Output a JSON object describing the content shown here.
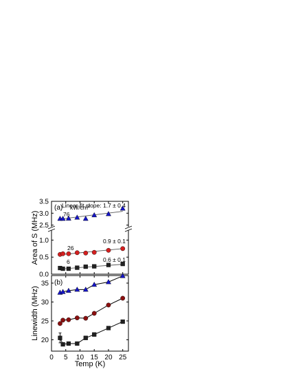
{
  "chart_data": [
    {
      "panel": "(a)",
      "type": "scatter",
      "ylabel": "Area of S (MHz)",
      "xlim": [
        0,
        27
      ],
      "y_broken_axis": true,
      "ylim_lower": [
        0,
        1.25
      ],
      "ylim_upper": [
        2.4,
        3.5
      ],
      "yticks_lower": [
        "0.0",
        "0.5",
        "1.0"
      ],
      "yticks_upper": [
        "2.5",
        "3.0",
        "3.5"
      ],
      "unit_label": "kW/cm",
      "unit_superscript": "2",
      "fit_label": "Linear fit slope: 1.7 ± 0.4",
      "series": [
        {
          "power_label": "76",
          "slope_label": "",
          "marker": "triangle",
          "color": "#1515c8",
          "x": [
            3,
            4,
            6,
            9,
            12,
            15,
            20,
            25
          ],
          "y": [
            2.77,
            2.77,
            2.78,
            2.82,
            2.77,
            2.92,
            2.97,
            3.2
          ],
          "fit": [
            [
              3,
              2.75
            ],
            [
              25,
              3.08
            ]
          ]
        },
        {
          "power_label": "26",
          "slope_label": "0.9 ± 0.1",
          "marker": "circle",
          "color": "#d42020",
          "x": [
            3,
            4,
            6,
            9,
            12,
            15,
            20,
            25
          ],
          "y": [
            0.58,
            0.6,
            0.6,
            0.63,
            0.62,
            0.64,
            0.7,
            0.75
          ],
          "fit": [
            [
              3,
              0.57
            ],
            [
              25,
              0.75
            ]
          ]
        },
        {
          "power_label": "6",
          "slope_label": "0.6 ± 0.1",
          "marker": "square",
          "color": "#222222",
          "x": [
            3,
            4,
            6,
            9,
            12,
            15,
            20,
            25
          ],
          "y": [
            0.18,
            0.16,
            0.16,
            0.19,
            0.22,
            0.23,
            0.27,
            0.3
          ],
          "fit": [
            [
              3,
              0.15
            ],
            [
              25,
              0.29
            ]
          ]
        }
      ]
    },
    {
      "panel": "(b)",
      "type": "line",
      "xlabel": "Temp (K)",
      "ylabel": "Linewidth (MHz)",
      "xlim": [
        0,
        27
      ],
      "ylim": [
        17,
        37
      ],
      "xticks": [
        "0",
        "5",
        "10",
        "15",
        "20",
        "25"
      ],
      "yticks": [
        "20",
        "25",
        "30",
        "35"
      ],
      "series": [
        {
          "marker": "triangle",
          "color": "#1515c8",
          "x": [
            3,
            4,
            6,
            9,
            12,
            15,
            20,
            25
          ],
          "y": [
            32.5,
            32.7,
            33.0,
            33.3,
            33.3,
            34.6,
            35.3,
            36.9
          ]
        },
        {
          "marker": "circle",
          "color": "#8b1010",
          "x": [
            3,
            4,
            6,
            9,
            12,
            15,
            20,
            25
          ],
          "y": [
            24.3,
            25.2,
            25.3,
            25.8,
            25.7,
            27.0,
            29.2,
            31.0
          ]
        },
        {
          "marker": "square",
          "color": "#222222",
          "x": [
            3,
            4,
            6,
            9,
            12,
            15,
            20,
            25
          ],
          "y": [
            20.5,
            18.8,
            19.0,
            19.0,
            20.5,
            21.4,
            23.1,
            24.8
          ],
          "err": [
            1.3,
            0,
            0,
            0,
            0,
            0,
            0,
            0
          ]
        }
      ]
    }
  ]
}
